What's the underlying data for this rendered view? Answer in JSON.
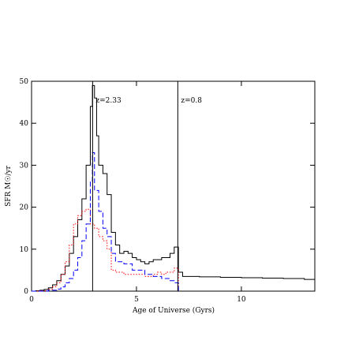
{
  "chart_data": {
    "type": "line",
    "step": true,
    "x_label": "Age of Universe (Gyrs)",
    "y_label": "SFR M☉/yr",
    "xlim": [
      0,
      13.5
    ],
    "ylim": [
      0,
      50
    ],
    "xticks": [
      0,
      5,
      10
    ],
    "yticks": [
      0,
      10,
      20,
      30,
      40,
      50
    ],
    "vlines": [
      {
        "x": 2.91,
        "label": "z=2.33"
      },
      {
        "x": 6.97,
        "label": "z=0.8"
      }
    ],
    "series": [
      {
        "color": "#000000",
        "dash": "solid",
        "x": [
          0,
          0.2,
          0.4,
          0.6,
          0.8,
          1.0,
          1.2,
          1.4,
          1.6,
          1.8,
          2.0,
          2.2,
          2.4,
          2.6,
          2.8,
          2.9,
          3.0,
          3.1,
          3.2,
          3.4,
          3.6,
          3.8,
          4.0,
          4.2,
          4.4,
          4.6,
          4.8,
          5.0,
          5.2,
          5.4,
          5.6,
          5.8,
          6.0,
          6.2,
          6.4,
          6.6,
          6.8,
          7.0,
          7.2,
          8,
          9,
          10,
          11,
          12,
          13,
          13.5
        ],
        "values": [
          0,
          0.1,
          0.2,
          0.4,
          0.8,
          1.5,
          2.5,
          4,
          6,
          9,
          13,
          17,
          22,
          30,
          44,
          49,
          46,
          37,
          30,
          28,
          23,
          14,
          11,
          9,
          9.5,
          9,
          8,
          7.5,
          7,
          6.5,
          7,
          7.5,
          7.5,
          8,
          8,
          9,
          10.5,
          4.5,
          3.5,
          3.4,
          3.3,
          3.2,
          3.1,
          3,
          2.8,
          2.6
        ]
      },
      {
        "color": "#ff0000",
        "dash": "dotted",
        "x": [
          0,
          0.4,
          0.8,
          1.0,
          1.2,
          1.4,
          1.6,
          1.8,
          2.0,
          2.2,
          2.4,
          2.6,
          2.8,
          3.0,
          3.2,
          3.4,
          3.6,
          3.8,
          4.0,
          4.4,
          4.8,
          5.0,
          5.4,
          5.8,
          6.0,
          6.2,
          6.4,
          6.6,
          6.8,
          7.0
        ],
        "values": [
          0,
          0.1,
          0.5,
          1,
          2,
          4,
          7,
          11,
          16,
          18,
          19,
          19.5,
          16,
          15,
          13,
          12,
          10,
          5,
          4.5,
          4,
          4,
          4,
          3.5,
          4,
          4.5,
          4,
          4.5,
          4.5,
          5.5,
          0
        ]
      },
      {
        "color": "#0000ff",
        "dash": "dashed",
        "x": [
          0,
          0.8,
          1.2,
          1.4,
          1.6,
          1.8,
          2.0,
          2.2,
          2.4,
          2.6,
          2.8,
          2.9,
          3.0,
          3.2,
          3.4,
          3.6,
          3.8,
          4.0,
          4.4,
          4.8,
          5.0,
          5.4,
          5.8,
          6.2,
          6.6,
          6.8,
          7.0
        ],
        "values": [
          0,
          0.2,
          0.5,
          1,
          2,
          3,
          5,
          8,
          12,
          16,
          26,
          33,
          24,
          19,
          15,
          13,
          9,
          7,
          6.5,
          5,
          5,
          4,
          3.5,
          3,
          2.5,
          2,
          0
        ]
      }
    ]
  }
}
